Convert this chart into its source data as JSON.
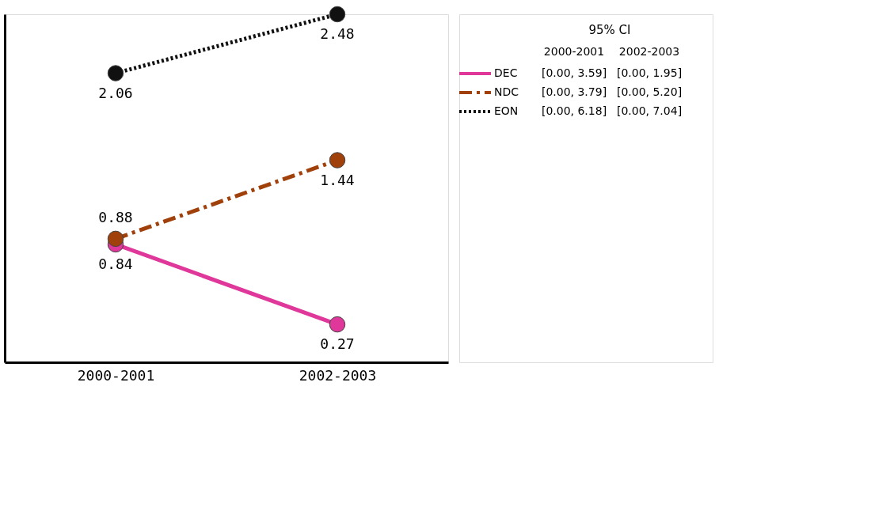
{
  "chart_data": {
    "type": "line",
    "categories": [
      "2000-2001",
      "2002-2003"
    ],
    "series": [
      {
        "name": "DEC",
        "color": "#e0389a",
        "line_style": "solid",
        "values": [
          0.84,
          0.27
        ]
      },
      {
        "name": "NDC",
        "color": "#a0400a",
        "line_style": "dashdot",
        "values": [
          0.88,
          1.44
        ]
      },
      {
        "name": "EON",
        "color": "#111111",
        "line_style": "dotted",
        "values": [
          2.06,
          2.48
        ]
      }
    ],
    "marker": "circle",
    "data_labels": true,
    "legend": "right",
    "grid": false,
    "annotations": [
      "95% CI",
      "2000-2001",
      "2002-2003",
      "[0.00, 3.59]",
      "[0.00, 1.95]",
      "[0.00, 3.79]",
      "[0.00, 5.20]",
      "[0.00, 6.18]",
      "[0.00, 7.04]"
    ]
  }
}
